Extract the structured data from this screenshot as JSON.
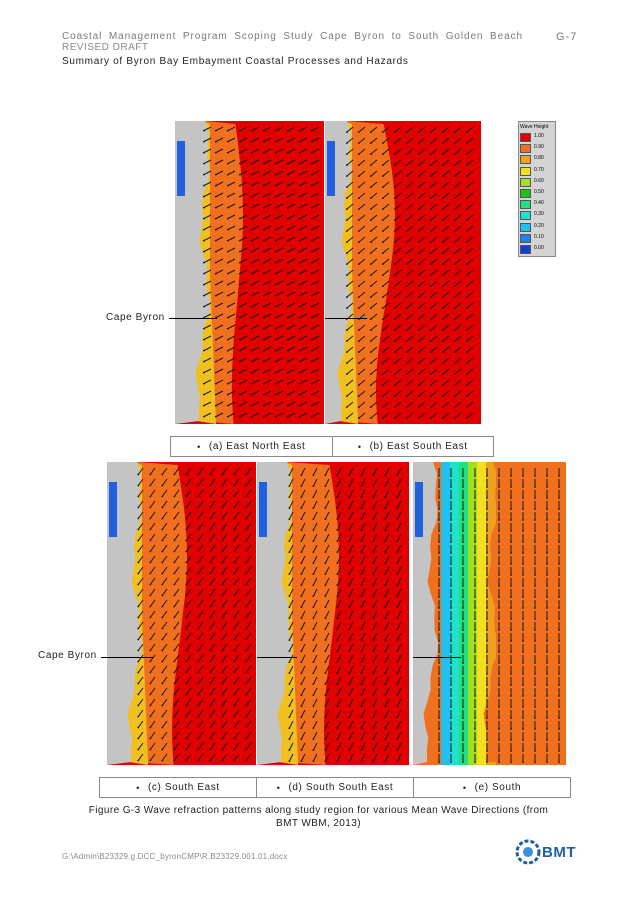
{
  "header": {
    "title": "Coastal Management Program Scoping Study Cape Byron to South Golden Beach",
    "page": "G-7",
    "subtitle": "REVISED DRAFT",
    "summary": "Summary of Byron Bay Embayment Coastal Processes and Hazards"
  },
  "figure": {
    "cape_label": "Cape Byron",
    "panels": [
      {
        "label": "(a) East North East"
      },
      {
        "label": "(b) East South East"
      },
      {
        "label": "(c) South East"
      },
      {
        "label": "(d) South South East"
      },
      {
        "label": "(e) South"
      }
    ],
    "legend": {
      "title": "Wave Height",
      "entries": [
        {
          "value": "1.00",
          "color": "#e00000"
        },
        {
          "value": "0.90",
          "color": "#f07020"
        },
        {
          "value": "0.80",
          "color": "#f0a020"
        },
        {
          "value": "0.70",
          "color": "#f0e020"
        },
        {
          "value": "0.60",
          "color": "#a0e020"
        },
        {
          "value": "0.50",
          "color": "#20c020"
        },
        {
          "value": "0.40",
          "color": "#20e080"
        },
        {
          "value": "0.30",
          "color": "#20e0d0"
        },
        {
          "value": "0.20",
          "color": "#20c0f0"
        },
        {
          "value": "0.10",
          "color": "#2080f0"
        },
        {
          "value": "0.00",
          "color": "#1040d0"
        }
      ]
    },
    "caption_line1": "Figure G-3 Wave refraction patterns along study region for various Mean Wave Directions (from",
    "caption_line2": "BMT WBM, 2013)"
  },
  "footer": {
    "path": "G:\\Admin\\B23329.g.DCC_byronCMP\\R.B23329.001.01.docx",
    "logo_text": "BMT"
  }
}
